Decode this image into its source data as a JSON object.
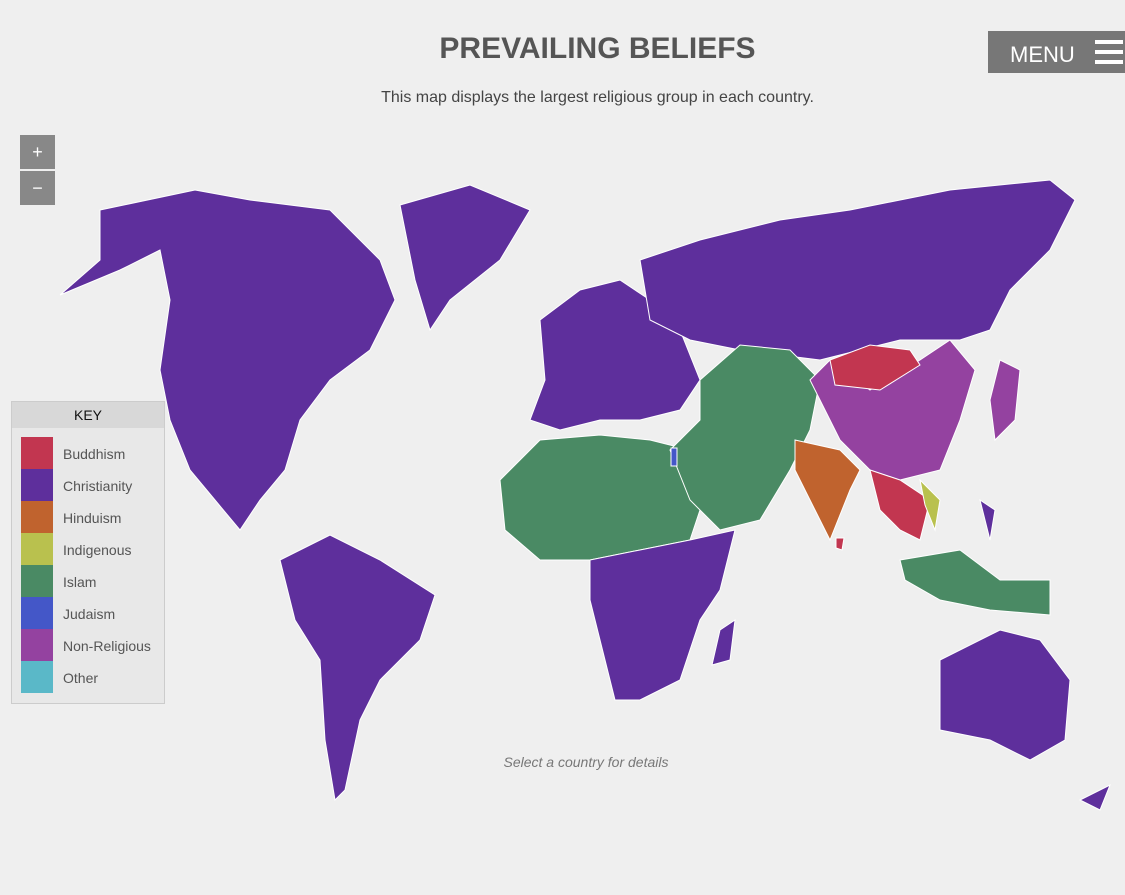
{
  "header": {
    "title": "PREVAILING BELIEFS",
    "subtitle": "This map displays the largest religious group in each country."
  },
  "menu": {
    "label": "MENU"
  },
  "zoom": {
    "in": "+",
    "out": "−"
  },
  "key": {
    "title": "KEY",
    "items": [
      {
        "name": "Buddhism",
        "color": "#c23650"
      },
      {
        "name": "Christianity",
        "color": "#5e2f9c"
      },
      {
        "name": "Hinduism",
        "color": "#c0632e"
      },
      {
        "name": "Indigenous",
        "color": "#b9c14e"
      },
      {
        "name": "Islam",
        "color": "#4a8a64"
      },
      {
        "name": "Judaism",
        "color": "#4457c8"
      },
      {
        "name": "Non-Religious",
        "color": "#9442a0"
      },
      {
        "name": "Other",
        "color": "#5ab8c8"
      }
    ]
  },
  "footer": {
    "hint": "Select a country for details"
  }
}
